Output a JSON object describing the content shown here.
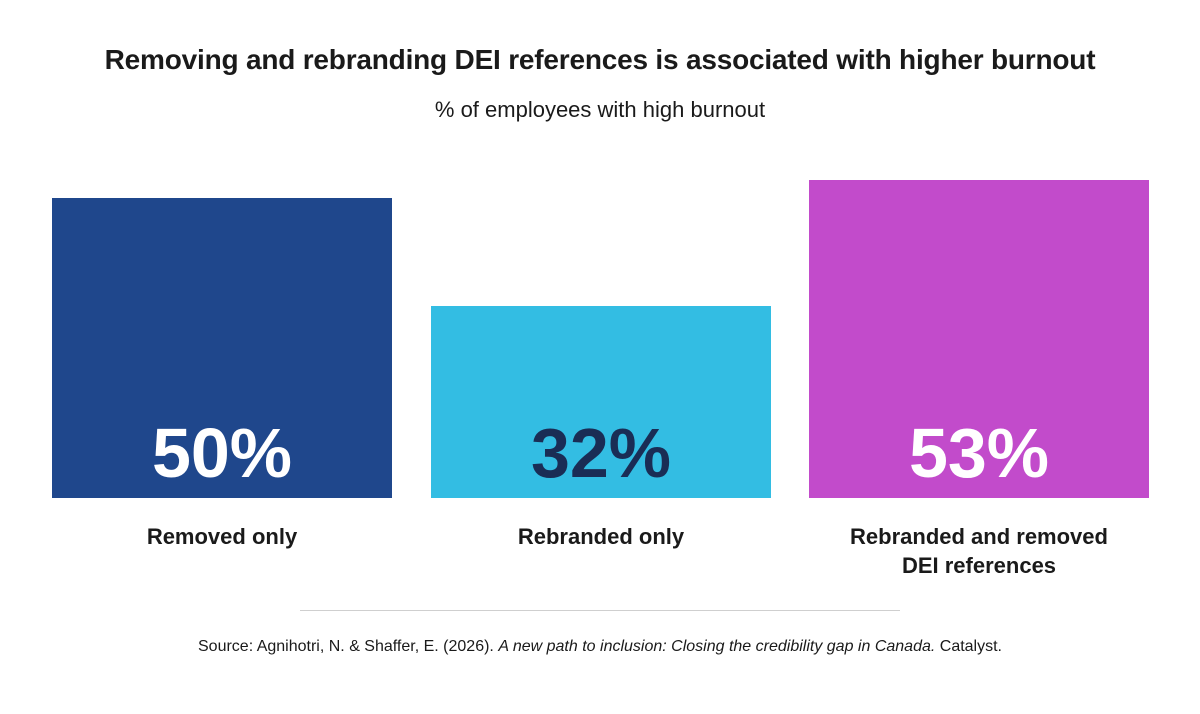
{
  "header": {
    "title": "Removing and rebranding DEI references is associated with higher burnout",
    "subtitle": "% of employees with high burnout"
  },
  "chart_data": {
    "type": "bar",
    "title": "Removing and rebranding DEI references is associated with higher burnout",
    "subtitle": "% of employees with high burnout",
    "categories": [
      [
        "Removed only"
      ],
      [
        "Rebranded only"
      ],
      [
        "Rebranded and removed",
        "DEI references"
      ]
    ],
    "values": [
      50,
      32,
      53
    ],
    "value_labels": [
      "50%",
      "32%",
      "53%"
    ],
    "unit": "%",
    "colors": [
      "#1f478c",
      "#33bde3",
      "#c24bcb"
    ],
    "label_colors": [
      "#ffffff",
      "#1a2d55",
      "#ffffff"
    ],
    "grid": false,
    "legend": "none",
    "xlabel": "",
    "ylabel": ""
  },
  "footer": {
    "source_prefix": "Source: Agnihotri, N. & Shaffer, E. (2026). ",
    "source_title": "A new path to inclusion: Closing the credibility gap in Canada.",
    "source_suffix": " Catalyst."
  }
}
